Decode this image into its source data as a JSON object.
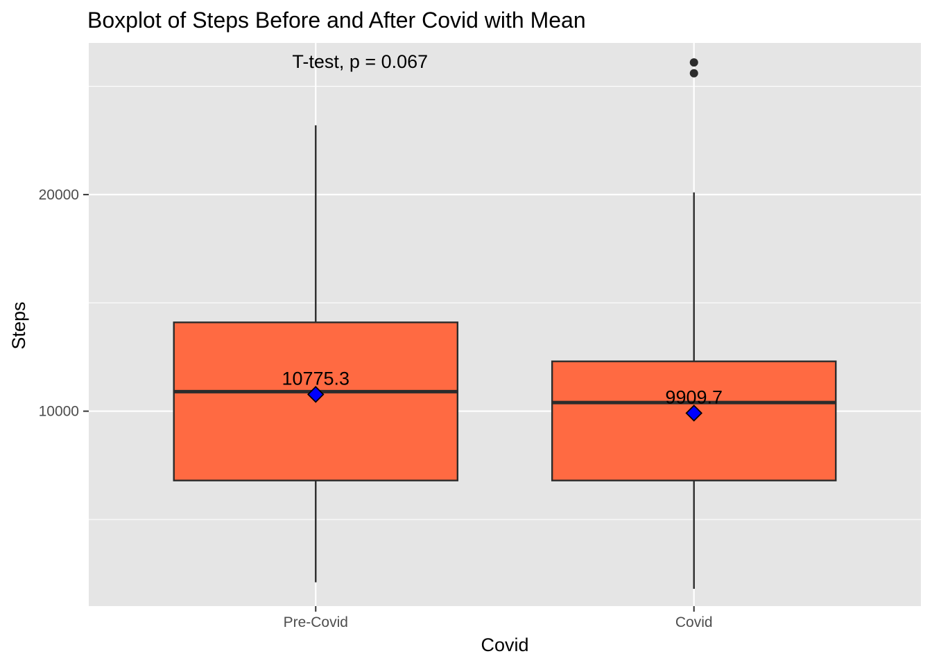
{
  "chart_data": {
    "type": "boxplot",
    "title": "Boxplot of Steps Before and After Covid with Mean",
    "xlabel": "Covid",
    "ylabel": "Steps",
    "categories": [
      "Pre-Covid",
      "Covid"
    ],
    "ylim": [
      1000,
      27000
    ],
    "yticks": [
      10000,
      20000
    ],
    "grid": true,
    "annotation": "T-test, p = 0.067",
    "boxes": [
      {
        "category": "Pre-Covid",
        "min": 2100,
        "q1": 6800,
        "median": 10900,
        "q3": 14100,
        "max": 23200,
        "mean": 10775.3,
        "mean_label": "10775.3",
        "outliers": []
      },
      {
        "category": "Covid",
        "min": 1800,
        "q1": 6800,
        "median": 10400,
        "q3": 12300,
        "max": 20100,
        "mean": 9909.7,
        "mean_label": "9909.7",
        "outliers": [
          25600,
          26100
        ]
      }
    ],
    "colors": {
      "panel": "#e5e5e5",
      "grid": "#ffffff",
      "box_fill": "#ff6a42",
      "box_stroke": "#2b2b2b",
      "mean_marker": "#0000ff"
    }
  }
}
